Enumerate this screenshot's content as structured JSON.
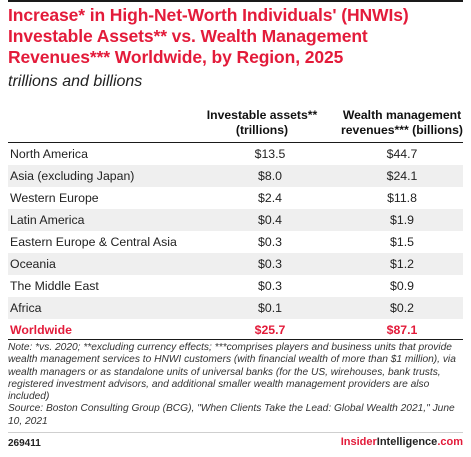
{
  "title": "Increase* in High-Net-Worth Individuals' (HNWIs) Investable Assets** vs. Wealth Management Revenues*** Worldwide, by Region, 2025",
  "subtitle": "trillions and billions",
  "chart_data": {
    "type": "table",
    "columns": [
      "Investable assets** (trillions)",
      "Wealth management revenues*** (billions)"
    ],
    "rows": [
      {
        "label": "North America",
        "assets": "$13.5",
        "revenues": "$44.7"
      },
      {
        "label": "Asia (excluding Japan)",
        "assets": "$8.0",
        "revenues": "$24.1"
      },
      {
        "label": "Western Europe",
        "assets": "$2.4",
        "revenues": "$11.8"
      },
      {
        "label": "Latin America",
        "assets": "$0.4",
        "revenues": "$1.9"
      },
      {
        "label": "Eastern Europe & Central Asia",
        "assets": "$0.3",
        "revenues": "$1.5"
      },
      {
        "label": "Oceania",
        "assets": "$0.3",
        "revenues": "$1.2"
      },
      {
        "label": "The Middle East",
        "assets": "$0.3",
        "revenues": "$0.9"
      },
      {
        "label": "Africa",
        "assets": "$0.1",
        "revenues": "$0.2"
      }
    ],
    "total": {
      "label": "Worldwide",
      "assets": "$25.7",
      "revenues": "$87.1"
    }
  },
  "header": {
    "col1_line1": "Investable assets**",
    "col1_line2": "(trillions)",
    "col2_line1": "Wealth management",
    "col2_line2": "revenues*** (billions)"
  },
  "note": "Note: *vs. 2020; **excluding currency effects; ***comprises players and business units that provide wealth management services to HNWI customers (with financial wealth of more than $1 million), via wealth managers or as standalone units of universal banks (for the US, wirehouses, bank trusts, registered investment advisors, and additional smaller wealth management providers are also included)",
  "source": "Source: Boston Consulting Group (BCG), \"When Clients Take the Lead: Global Wealth 2021,\" June 10, 2021",
  "chart_id": "269411",
  "brand": {
    "part1": "Insider",
    "part2": "Intelligence",
    "part3": ".com"
  },
  "colors": {
    "accent": "#e31b3a",
    "shade": "#efefef"
  }
}
